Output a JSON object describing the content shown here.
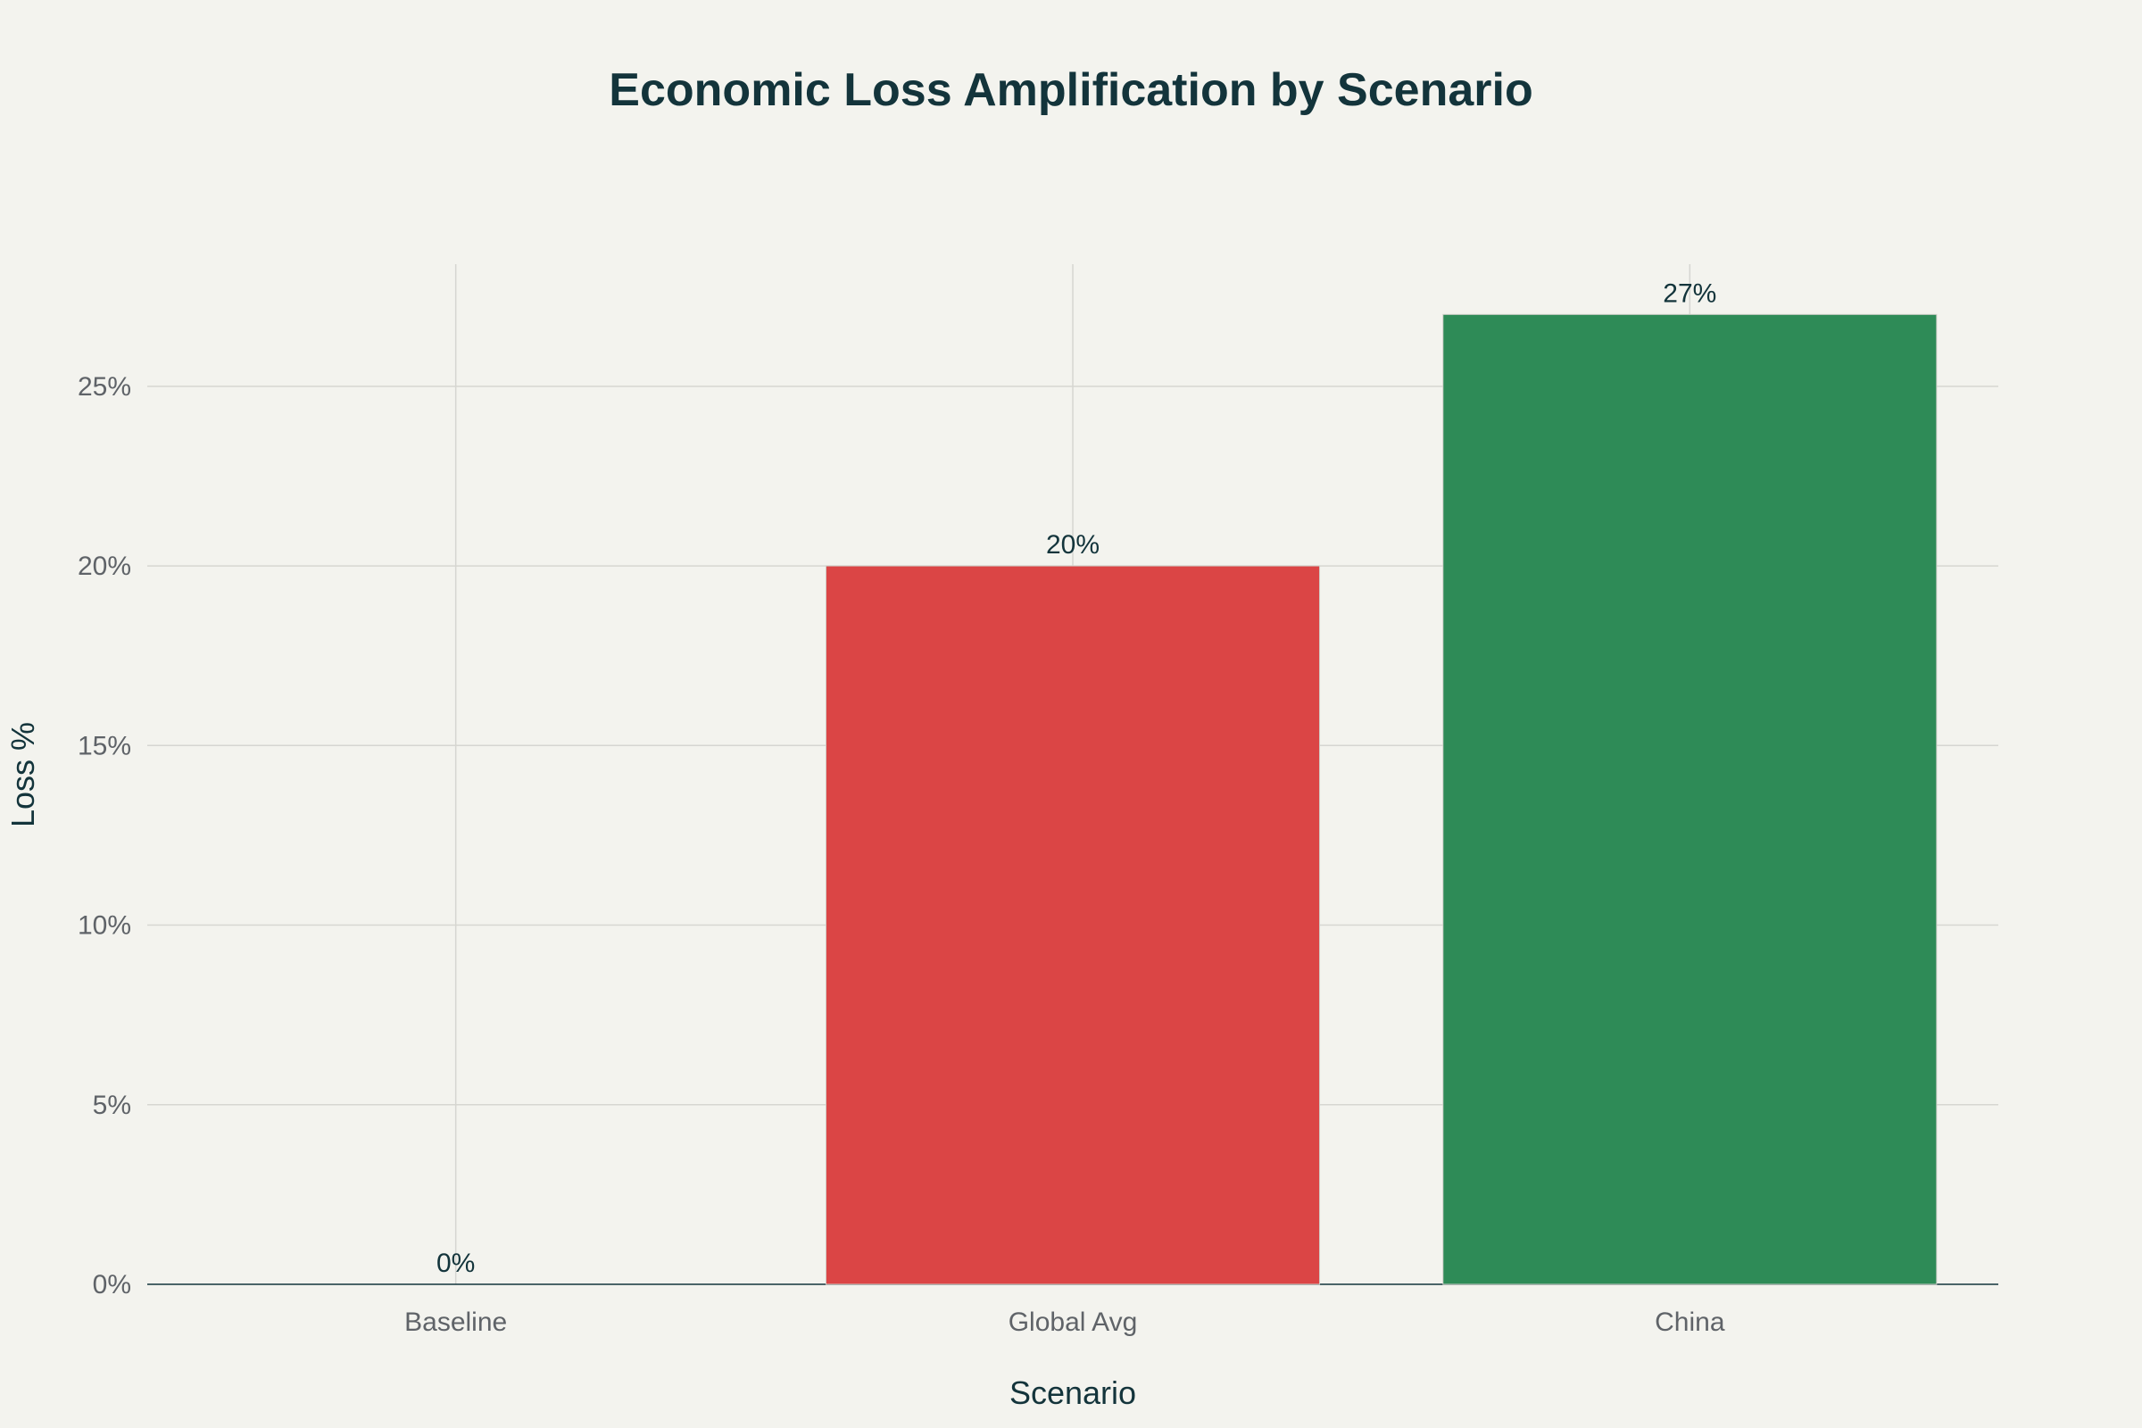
{
  "chart_data": {
    "type": "bar",
    "title": "Economic Loss Amplification by Scenario",
    "xlabel": "Scenario",
    "ylabel": "Loss %",
    "categories": [
      "Baseline",
      "Global Avg",
      "China"
    ],
    "values": [
      0,
      20,
      27
    ],
    "data_labels": [
      "0%",
      "20%",
      "27%"
    ],
    "bar_colors": [
      "#13343b",
      "#db4545",
      "#2e8b57"
    ],
    "ylim": [
      0,
      28.4
    ],
    "yticks": [
      0,
      5,
      10,
      15,
      20,
      25
    ],
    "ytick_labels": [
      "0%",
      "5%",
      "10%",
      "15%",
      "20%",
      "25%"
    ],
    "grid": true,
    "legend": "none"
  }
}
